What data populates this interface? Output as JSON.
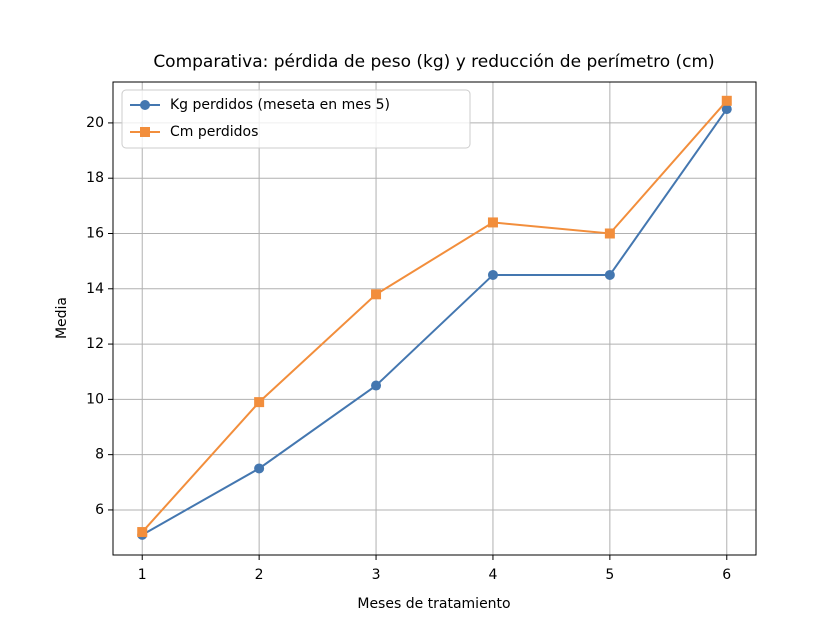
{
  "chart_data": {
    "type": "line",
    "title": "Comparativa: pérdida de peso (kg) y reducción de perímetro (cm)",
    "x_label": "Meses de tratamiento",
    "y_label": "Media",
    "x": [
      1,
      2,
      3,
      4,
      5,
      6
    ],
    "series": [
      {
        "name": "Kg perdidos (meseta en mes 5)",
        "color": "#4477b0",
        "marker": "circle",
        "values": [
          5.1,
          7.5,
          10.5,
          14.5,
          14.5,
          20.5
        ]
      },
      {
        "name": "Cm perdidos",
        "color": "#f28e3c",
        "marker": "square",
        "values": [
          5.2,
          9.9,
          13.8,
          16.4,
          16.0,
          20.8
        ]
      }
    ],
    "xlim": [
      0.75,
      6.25
    ],
    "xticks": [
      1,
      2,
      3,
      4,
      5,
      6
    ],
    "ylim": [
      4.37,
      21.48
    ],
    "yticks": [
      6,
      8,
      10,
      12,
      14,
      16,
      18,
      20
    ],
    "grid": true,
    "legend": "upper-left"
  }
}
